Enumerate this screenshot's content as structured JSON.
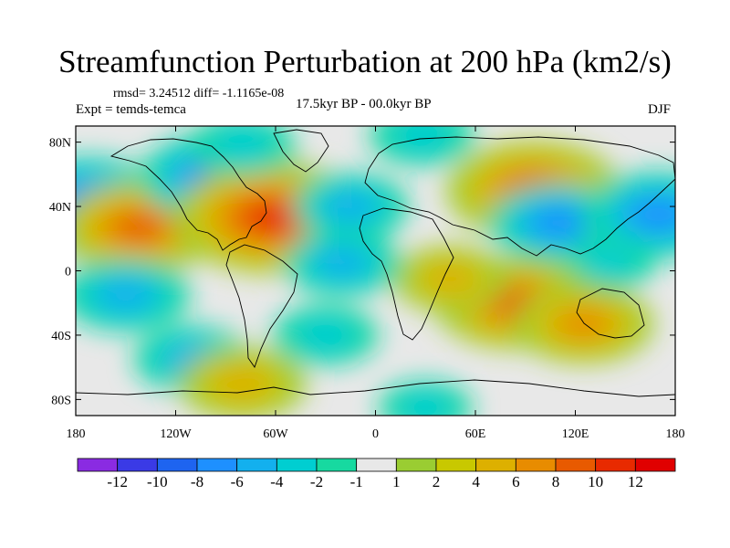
{
  "title": "Streamfunction Perturbation at 200 hPa (km2/s)",
  "stats_text": "rmsd= 3.24512 diff= -1.1165e-08",
  "experiment_text": "Expt = temds-temca",
  "period_text": "17.5kyr BP - 00.0kyr BP",
  "season_text": "DJF",
  "map_data": {
    "type": "filled-contour-map",
    "projection": "cylindrical-equidistant",
    "lon_range": [
      -180,
      180
    ],
    "lat_range": [
      -90,
      90
    ],
    "x_ticks": [
      {
        "value": -180,
        "label": "180"
      },
      {
        "value": -120,
        "label": "120W"
      },
      {
        "value": -60,
        "label": "60W"
      },
      {
        "value": 0,
        "label": "0"
      },
      {
        "value": 60,
        "label": "60E"
      },
      {
        "value": 120,
        "label": "120E"
      },
      {
        "value": 180,
        "label": "180"
      }
    ],
    "y_ticks": [
      {
        "value": 80,
        "label": "80N"
      },
      {
        "value": 40,
        "label": "40N"
      },
      {
        "value": 0,
        "label": "0"
      },
      {
        "value": -40,
        "label": "40S"
      },
      {
        "value": -80,
        "label": "80S"
      }
    ],
    "colorbar": {
      "levels": [
        "-12",
        "-10",
        "-8",
        "-6",
        "-4",
        "-2",
        "-1",
        "1",
        "2",
        "4",
        "6",
        "8",
        "10",
        "12"
      ],
      "colors": [
        "#8a2be2",
        "#3a3ae6",
        "#1e64f0",
        "#1e90ff",
        "#13b0ee",
        "#00ced1",
        "#17d9a0",
        "#e8e8e8",
        "#9acd32",
        "#c8c800",
        "#ddb000",
        "#e88c00",
        "#e85a00",
        "#e82a00",
        "#e00000"
      ]
    },
    "fields": [
      {
        "lon": -173,
        "lat": 40,
        "value": -9
      },
      {
        "lon": -142,
        "lat": 27,
        "value": 8
      },
      {
        "lon": -92,
        "lat": 58,
        "value": -8
      },
      {
        "lon": -62,
        "lat": 33,
        "value": 11
      },
      {
        "lon": -80,
        "lat": 78,
        "value": -3
      },
      {
        "lon": -15,
        "lat": 40,
        "value": -4
      },
      {
        "lon": 28,
        "lat": 84,
        "value": -3
      },
      {
        "lon": 95,
        "lat": 50,
        "value": 9
      },
      {
        "lon": 110,
        "lat": 30,
        "value": -6
      },
      {
        "lon": 170,
        "lat": 35,
        "value": -7
      },
      {
        "lon": 140,
        "lat": 5,
        "value": -2
      },
      {
        "lon": 84,
        "lat": -20,
        "value": 8
      },
      {
        "lon": 45,
        "lat": -5,
        "value": 4
      },
      {
        "lon": 125,
        "lat": -33,
        "value": 6
      },
      {
        "lon": -150,
        "lat": -15,
        "value": -5
      },
      {
        "lon": -110,
        "lat": -55,
        "value": -4
      },
      {
        "lon": -30,
        "lat": -40,
        "value": -3
      },
      {
        "lon": -80,
        "lat": -70,
        "value": 5
      },
      {
        "lon": 30,
        "lat": -85,
        "value": -2
      },
      {
        "lon": -20,
        "lat": 5,
        "value": -4
      }
    ]
  }
}
